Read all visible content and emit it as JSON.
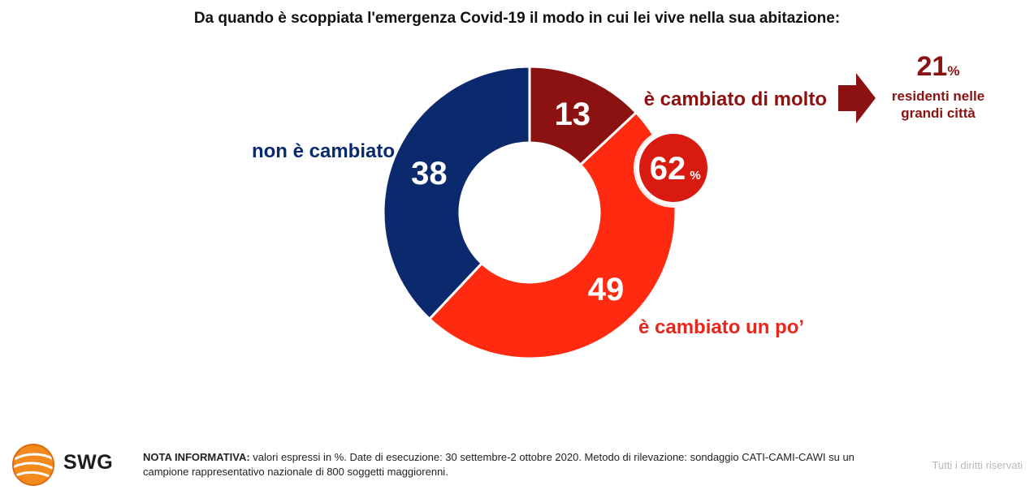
{
  "chart_data": {
    "type": "pie",
    "style": "donut",
    "title": "Da quando è scoppiata l'emergenza Covid-19 il modo in cui lei vive nella sua abitazione:",
    "slices": [
      {
        "label": "è cambiato di molto",
        "value": 13,
        "color": "#8c1212"
      },
      {
        "label": "è cambiato un po’",
        "value": 49,
        "color": "#ff2a10"
      },
      {
        "label": "non è cambiato",
        "value": 38,
        "color": "#0b2a6e"
      }
    ],
    "badge": {
      "value": "62",
      "unit": "%",
      "color": "#d91a10"
    },
    "callout": {
      "value": "21",
      "unit": "%",
      "text_line1": "residenti nelle",
      "text_line2": "grandi città",
      "color": "#8c1212"
    }
  },
  "footer": {
    "brand": "SWG",
    "note_label": "NOTA INFORMATIVA:",
    "note_text": " valori espressi in %. Date di esecuzione: 30 settembre-2 ottobre 2020. Metodo di rilevazione: sondaggio CATI-CAMI-CAWI su un campione rappresentativo nazionale di 800 soggetti maggiorenni.",
    "rights": "Tutti i diritti riservati"
  }
}
